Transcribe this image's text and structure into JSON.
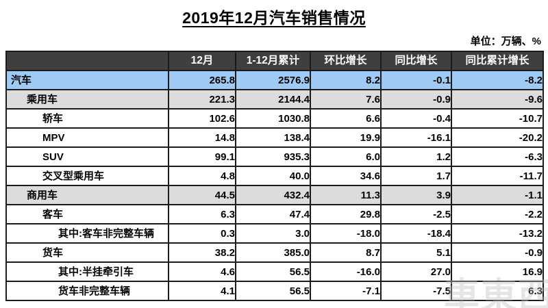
{
  "title": "2019年12月汽车销售情况",
  "unit_note": "单位：万辆、%",
  "watermark": "車東西",
  "colors": {
    "header_bg": "#3f3f3f",
    "highlight_blue": "#9ecaf4",
    "highlight_gray": "#dcdcdc",
    "border": "#1b1b1b"
  },
  "chart_data": {
    "type": "table",
    "title": "2019年12月汽车销售情况",
    "unit": "万辆、%",
    "columns": [
      "",
      "12月",
      "1-12月累计",
      "环比增长",
      "同比增长",
      "同比累计增长"
    ],
    "rows": [
      {
        "label": "汽车",
        "indent": 0,
        "style": "blue",
        "values": [
          "265.8",
          "2576.9",
          "8.2",
          "-0.1",
          "-8.2"
        ]
      },
      {
        "label": "乘用车",
        "indent": 1,
        "style": "gray",
        "values": [
          "221.3",
          "2144.4",
          "7.6",
          "-0.9",
          "-9.6"
        ]
      },
      {
        "label": "轿车",
        "indent": 2,
        "style": "white",
        "values": [
          "102.6",
          "1030.8",
          "6.6",
          "-0.4",
          "-10.7"
        ]
      },
      {
        "label": "MPV",
        "indent": 2,
        "style": "white",
        "values": [
          "14.8",
          "138.4",
          "19.9",
          "-16.1",
          "-20.2"
        ]
      },
      {
        "label": "SUV",
        "indent": 2,
        "style": "white",
        "values": [
          "99.1",
          "935.3",
          "6.0",
          "1.2",
          "-6.3"
        ]
      },
      {
        "label": "交叉型乘用车",
        "indent": 2,
        "style": "white",
        "values": [
          "4.8",
          "40.0",
          "34.6",
          "1.7",
          "-11.7"
        ]
      },
      {
        "label": "商用车",
        "indent": 1,
        "style": "gray",
        "values": [
          "44.5",
          "432.4",
          "11.3",
          "3.9",
          "-1.1"
        ]
      },
      {
        "label": "客车",
        "indent": 2,
        "style": "white",
        "values": [
          "6.3",
          "47.4",
          "29.8",
          "-2.5",
          "-2.2"
        ]
      },
      {
        "label": "其中:客车非完整车辆",
        "indent": 3,
        "style": "white",
        "values": [
          "0.3",
          "3.0",
          "-18.0",
          "-18.4",
          "-13.2"
        ]
      },
      {
        "label": "货车",
        "indent": 2,
        "style": "white",
        "values": [
          "38.2",
          "385.0",
          "8.7",
          "5.1",
          "-0.9"
        ]
      },
      {
        "label": "其中:半挂牵引车",
        "indent": 3,
        "style": "white",
        "values": [
          "4.6",
          "56.5",
          "-16.0",
          "27.0",
          "16.9"
        ]
      },
      {
        "label": "货车非完整车辆",
        "indent": 3,
        "style": "white",
        "values": [
          "4.1",
          "56.5",
          "-7.1",
          "-7.5",
          "6.3"
        ]
      }
    ]
  }
}
